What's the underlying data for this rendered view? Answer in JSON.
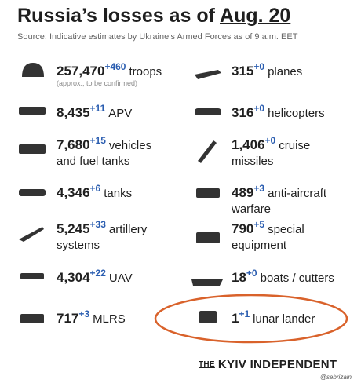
{
  "header": {
    "title_start": "Russia’s losses as of",
    "title_date": "Aug. 20",
    "source": "Source: Indicative estimates by Ukraine’s Armed Forces as of 9 a.m. EET"
  },
  "items": [
    {
      "number": "257,470",
      "delta": "+460",
      "label_lines": [
        "troops"
      ],
      "note": "(approx., to be confirmed)"
    },
    {
      "number": "8,435",
      "delta": "+11",
      "label_lines": [
        "APV"
      ]
    },
    {
      "number": "7,680",
      "delta": "+15",
      "label_lines": [
        "vehicles",
        "and fuel tanks"
      ]
    },
    {
      "number": "4,346",
      "delta": "+6",
      "label_lines": [
        "tanks"
      ]
    },
    {
      "number": "5,245",
      "delta": "+33",
      "label_lines": [
        "artillery",
        "systems"
      ]
    },
    {
      "number": "4,304",
      "delta": "+22",
      "label_lines": [
        "UAV"
      ]
    },
    {
      "number": "717",
      "delta": "+3",
      "label_lines": [
        "MLRS"
      ]
    },
    {
      "number": "315",
      "delta": "+0",
      "label_lines": [
        "planes"
      ]
    },
    {
      "number": "316",
      "delta": "+0",
      "label_lines": [
        "helicopters"
      ]
    },
    {
      "number": "1,406",
      "delta": "+0",
      "label_lines": [
        "cruise",
        "missiles"
      ]
    },
    {
      "number": "489",
      "delta": "+3",
      "label_lines": [
        "anti-aircraft",
        "warfare"
      ]
    },
    {
      "number": "790",
      "delta": "+5",
      "label_lines": [
        "special",
        "equipment"
      ]
    },
    {
      "number": "18",
      "delta": "+0",
      "label_lines": [
        "boats / cutters"
      ]
    },
    {
      "number": "1",
      "delta": "+1",
      "label_lines": [
        "lunar lander"
      ]
    }
  ],
  "footer": {
    "the": "THE",
    "brand": "KYIV INDEPENDENT",
    "credit": "@sebrizain"
  }
}
